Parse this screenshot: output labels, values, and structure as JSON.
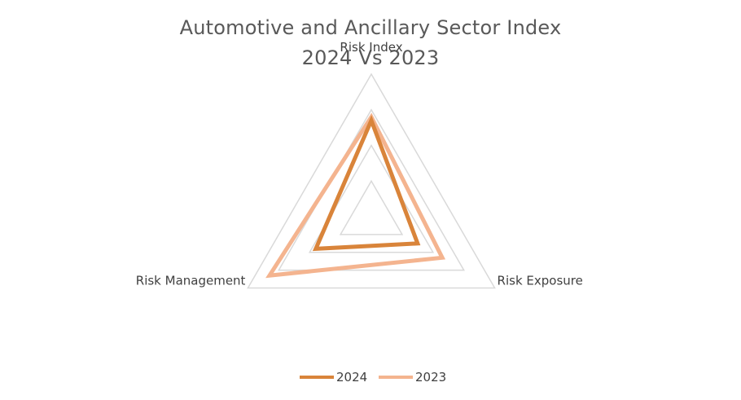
{
  "chart_data": {
    "type": "radar",
    "title": [
      "Automotive and Ancillary Sector Index",
      "2024 Vs 2023"
    ],
    "categories": [
      "Risk Index",
      "Risk Exposure",
      "Risk Management"
    ],
    "scale": {
      "min": 0,
      "max": 4,
      "gridlines": [
        1,
        2,
        3,
        4
      ]
    },
    "series": [
      {
        "name": "2024",
        "values": [
          2.7,
          1.5,
          1.8
        ],
        "color": "#D9843A",
        "line_width": "thick"
      },
      {
        "name": "2023",
        "values": [
          2.8,
          2.3,
          3.3
        ],
        "color": "#F4B48F",
        "line_width": "thick"
      }
    ],
    "grid_color": "#D9D9D9",
    "legend": {
      "position": "bottom",
      "entries": [
        "2024",
        "2023"
      ]
    }
  }
}
